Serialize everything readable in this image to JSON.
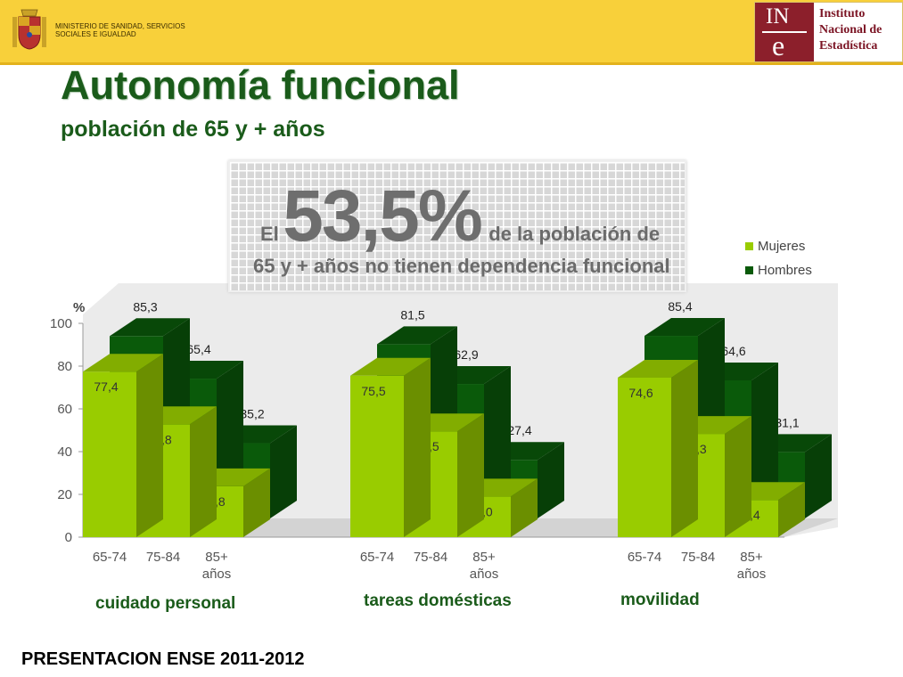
{
  "header": {
    "ministry_text": "MINISTERIO DE SANIDAD, SERVICIOS SOCIALES E IGUALDAD",
    "ine_logo_in": "IN",
    "ine_logo_e": "e",
    "ine_lines": [
      "Instituto",
      "Nacional de",
      "Estadística"
    ]
  },
  "title": "Autonomía funcional",
  "subtitle": "población de 65 y + años",
  "callout": {
    "prefix": "El",
    "big": "53,5%",
    "suffix": "de la  población de",
    "line2": "65 y + años no tienen dependencia funcional"
  },
  "footer": "PRESENTACION ENSE 2011-2012",
  "colors": {
    "mujeres": "#99cc00",
    "hombres": "#0a5a0a"
  },
  "chart_data": {
    "type": "bar",
    "ylabel": "%",
    "ylim": [
      0,
      100
    ],
    "yticks": [
      "0",
      "20",
      "40",
      "60",
      "80",
      "100"
    ],
    "legend": {
      "position": "right",
      "entries": [
        "Mujeres",
        "Hombres"
      ]
    },
    "groups": [
      {
        "name": "cuidado personal",
        "categories": [
          "65-74",
          "75-84",
          "85+ años"
        ],
        "mujeres": [
          77.4,
          52.8,
          23.8
        ],
        "hombres": [
          85.3,
          65.4,
          35.2
        ],
        "mujeres_labels": [
          "77,4",
          "52,8",
          "23,8"
        ],
        "hombres_labels": [
          "85,3",
          "65,4",
          "35,2"
        ]
      },
      {
        "name": "tareas domésticas",
        "categories": [
          "65-74",
          "75-84",
          "85+ años"
        ],
        "mujeres": [
          75.5,
          49.5,
          19.0
        ],
        "hombres": [
          81.5,
          62.9,
          27.4
        ],
        "mujeres_labels": [
          "75,5",
          "49,5",
          "19,0"
        ],
        "hombres_labels": [
          "81,5",
          "62,9",
          "27,4"
        ]
      },
      {
        "name": "movilidad",
        "categories": [
          "65-74",
          "75-84",
          "85+ años"
        ],
        "mujeres": [
          74.6,
          48.3,
          17.4
        ],
        "hombres": [
          85.4,
          64.6,
          31.1
        ],
        "mujeres_labels": [
          "74,6",
          "48,3",
          "17,4"
        ],
        "hombres_labels": [
          "85,4",
          "64,6",
          "31,1"
        ]
      }
    ]
  }
}
